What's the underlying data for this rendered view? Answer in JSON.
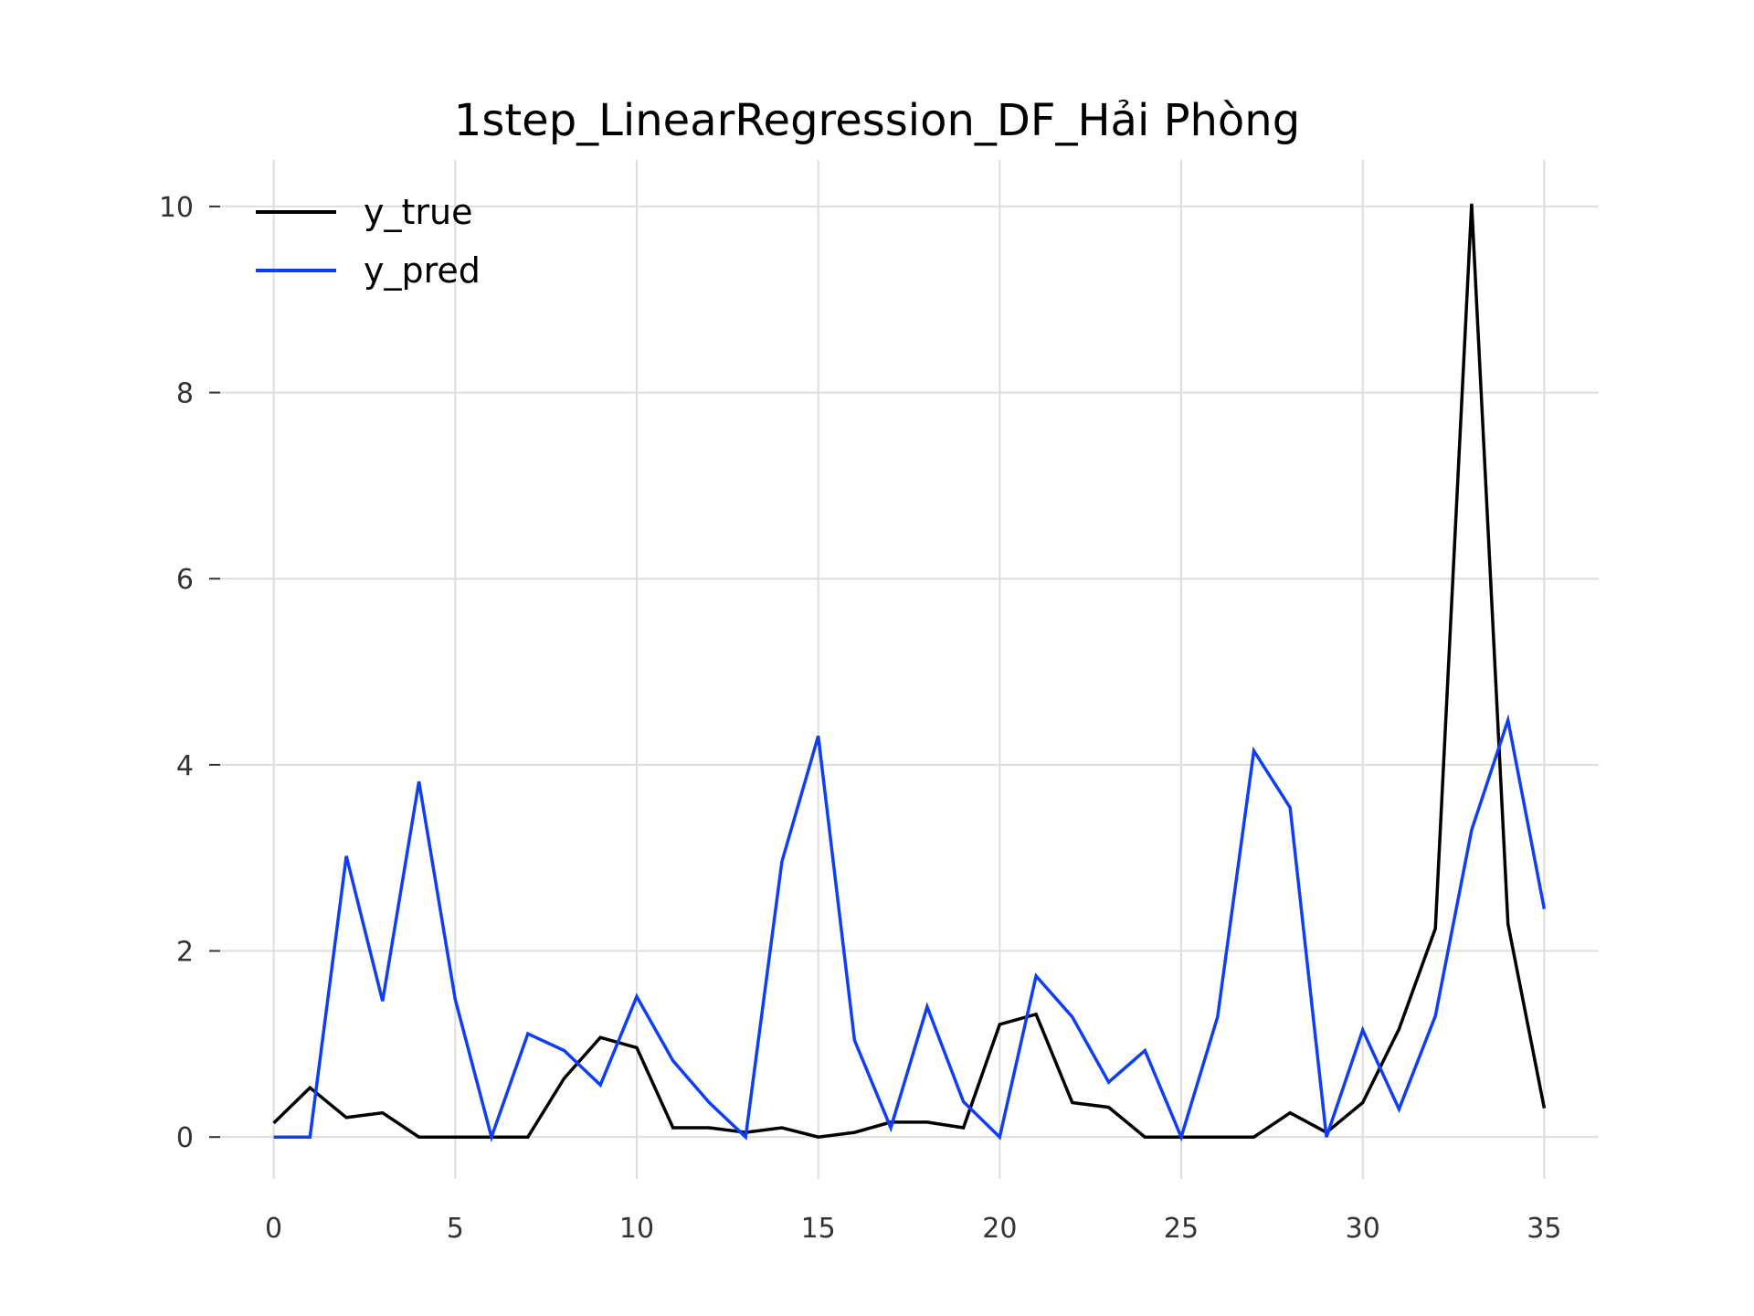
{
  "chart_data": {
    "type": "line",
    "title": "1step_LinearRegression_DF_Hải Phòng",
    "xlabel": "",
    "ylabel": "",
    "xlim": [
      -1.5,
      36.5
    ],
    "ylim": [
      -0.45,
      10.5
    ],
    "xticks": [
      0,
      5,
      10,
      15,
      20,
      25,
      30,
      35
    ],
    "yticks": [
      0,
      2,
      4,
      6,
      8,
      10
    ],
    "grid": true,
    "legend_position": "top-left",
    "x": [
      0,
      1,
      2,
      3,
      4,
      5,
      6,
      7,
      8,
      9,
      10,
      11,
      12,
      13,
      14,
      15,
      16,
      17,
      18,
      19,
      20,
      21,
      22,
      23,
      24,
      25,
      26,
      27,
      28,
      29,
      30,
      31,
      32,
      33,
      34,
      35
    ],
    "series": [
      {
        "name": "y_true",
        "color": "#000000",
        "values": [
          0.15,
          0.53,
          0.21,
          0.26,
          0.0,
          0.0,
          0.0,
          0.0,
          0.63,
          1.07,
          0.96,
          0.1,
          0.1,
          0.05,
          0.1,
          0.0,
          0.05,
          0.16,
          0.16,
          0.1,
          1.21,
          1.32,
          0.37,
          0.32,
          0.0,
          0.0,
          0.0,
          0.0,
          0.26,
          0.05,
          0.37,
          1.16,
          2.24,
          10.03,
          2.29,
          0.31
        ]
      },
      {
        "name": "y_pred",
        "color": "#0f3ff5",
        "values": [
          0.0,
          0.0,
          3.02,
          1.46,
          3.82,
          1.48,
          0.0,
          1.11,
          0.93,
          0.56,
          1.51,
          0.82,
          0.37,
          0.0,
          2.96,
          4.31,
          1.04,
          0.1,
          1.4,
          0.38,
          0.0,
          1.73,
          1.29,
          0.59,
          0.93,
          0.0,
          1.29,
          4.15,
          3.54,
          0.0,
          1.15,
          0.3,
          1.3,
          3.3,
          4.48,
          2.45
        ]
      }
    ]
  }
}
